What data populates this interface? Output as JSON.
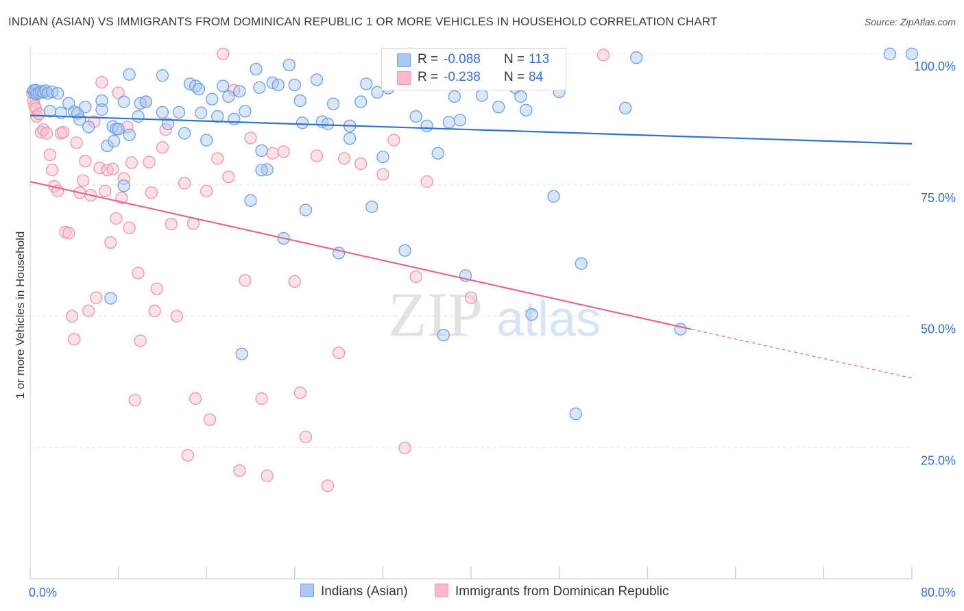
{
  "title": "INDIAN (ASIAN) VS IMMIGRANTS FROM DOMINICAN REPUBLIC 1 OR MORE VEHICLES IN HOUSEHOLD CORRELATION CHART",
  "source": "Source: ZipAtlas.com",
  "colors": {
    "blue_fill": "#aac8f0",
    "blue_stroke": "#6e9fe0",
    "blue_line": "#2f72c8",
    "pink_fill": "#f6bccd",
    "pink_stroke": "#ee93b0",
    "pink_line": "#e06894",
    "tick_label": "#3b6fc4",
    "grid": "#e4e4e4"
  },
  "legend": {
    "r_label": "R =",
    "n_label": "N =",
    "series1": {
      "r": "-0.088",
      "n": "113"
    },
    "series2": {
      "r": "-0.238",
      "n": "84"
    }
  },
  "watermark": {
    "zip": "ZIP",
    "atlas": "atlas"
  },
  "chart_data": {
    "type": "scatter",
    "xlabel": "",
    "ylabel": "1 or more Vehicles in Household",
    "xlim": [
      0,
      80
    ],
    "ylim": [
      0,
      100
    ],
    "x_tick_labels": [
      "0.0%",
      "80.0%"
    ],
    "y_ticks": [
      25,
      50,
      75,
      100
    ],
    "y_tick_labels": [
      "25.0%",
      "50.0%",
      "75.0%",
      "100.0%"
    ],
    "grid": true,
    "series": [
      {
        "name": "Indians (Asian)",
        "trend": {
          "x": [
            0,
            80
          ],
          "y": [
            88.2,
            82.8
          ]
        },
        "points": [
          [
            0.3,
            92.9
          ],
          [
            0.4,
            92.4
          ],
          [
            0.5,
            93.0
          ],
          [
            0.6,
            92.3
          ],
          [
            0.8,
            92.5
          ],
          [
            1.0,
            92.8
          ],
          [
            1.2,
            92.6
          ],
          [
            1.4,
            92.9
          ],
          [
            1.6,
            92.4
          ],
          [
            2.0,
            92.7
          ],
          [
            2.5,
            92.4
          ],
          [
            1.8,
            89.0
          ],
          [
            2.8,
            88.7
          ],
          [
            3.5,
            90.5
          ],
          [
            4.0,
            88.9
          ],
          [
            4.3,
            88.6
          ],
          [
            4.5,
            87.4
          ],
          [
            5.0,
            89.8
          ],
          [
            5.3,
            86.0
          ],
          [
            6.5,
            91.0
          ],
          [
            6.5,
            89.3
          ],
          [
            7.0,
            82.4
          ],
          [
            7.5,
            86.1
          ],
          [
            7.6,
            83.3
          ],
          [
            7.8,
            85.6
          ],
          [
            8.0,
            85.6
          ],
          [
            8.5,
            90.8
          ],
          [
            8.5,
            74.8
          ],
          [
            9.0,
            96.0
          ],
          [
            9.0,
            84.5
          ],
          [
            10.0,
            90.5
          ],
          [
            10.5,
            90.8
          ],
          [
            12.0,
            95.8
          ],
          [
            12.5,
            86.6
          ],
          [
            13.5,
            88.8
          ],
          [
            14.0,
            84.8
          ],
          [
            14.5,
            94.2
          ],
          [
            15.0,
            93.8
          ],
          [
            15.5,
            88.7
          ],
          [
            16.0,
            83.5
          ],
          [
            16.5,
            91.3
          ],
          [
            17.0,
            88.0
          ],
          [
            17.5,
            93.8
          ],
          [
            18.0,
            91.8
          ],
          [
            18.5,
            87.5
          ],
          [
            19.0,
            92.8
          ],
          [
            19.5,
            89.0
          ],
          [
            20.0,
            72.0
          ],
          [
            20.5,
            97.0
          ],
          [
            21.0,
            81.5
          ],
          [
            21.5,
            77.9
          ],
          [
            22.0,
            94.4
          ],
          [
            22.5,
            94.0
          ],
          [
            23.0,
            64.8
          ],
          [
            23.5,
            97.8
          ],
          [
            24.0,
            94.0
          ],
          [
            24.5,
            91.0
          ],
          [
            25.0,
            70.2
          ],
          [
            26.0,
            95.0
          ],
          [
            26.5,
            87.0
          ],
          [
            27.0,
            86.6
          ],
          [
            27.5,
            90.4
          ],
          [
            28.0,
            62.0
          ],
          [
            29.0,
            86.2
          ],
          [
            29.0,
            83.8
          ],
          [
            30.0,
            90.8
          ],
          [
            30.5,
            94.2
          ],
          [
            31.0,
            70.8
          ],
          [
            31.5,
            92.6
          ],
          [
            32.0,
            80.3
          ],
          [
            32.5,
            93.4
          ],
          [
            33.0,
            95.5
          ],
          [
            33.5,
            96.2
          ],
          [
            34.0,
            62.5
          ],
          [
            34.5,
            99.9
          ],
          [
            35.0,
            88.0
          ],
          [
            35.5,
            97.9
          ],
          [
            36.0,
            86.2
          ],
          [
            37.0,
            81.0
          ],
          [
            37.5,
            46.4
          ],
          [
            38.0,
            86.9
          ],
          [
            38.5,
            91.8
          ],
          [
            39.0,
            87.3
          ],
          [
            39.5,
            57.7
          ],
          [
            40.0,
            97.3
          ],
          [
            40.5,
            95.0
          ],
          [
            41.0,
            92.0
          ],
          [
            41.5,
            96.5
          ],
          [
            42.0,
            99.5
          ],
          [
            42.5,
            89.8
          ],
          [
            43.5,
            99.5
          ],
          [
            44.0,
            93.5
          ],
          [
            44.5,
            91.8
          ],
          [
            45.0,
            89.2
          ],
          [
            45.5,
            50.3
          ],
          [
            47.0,
            99.8
          ],
          [
            47.5,
            72.8
          ],
          [
            48.0,
            92.7
          ],
          [
            49.5,
            31.4
          ],
          [
            50.0,
            60.0
          ],
          [
            54.0,
            89.6
          ],
          [
            55.0,
            99.2
          ],
          [
            59.0,
            47.5
          ],
          [
            78.0,
            99.9
          ],
          [
            80.0,
            99.9
          ],
          [
            12.0,
            88.8
          ],
          [
            19.2,
            42.8
          ],
          [
            21.0,
            77.8
          ],
          [
            20.8,
            93.5
          ],
          [
            7.3,
            53.4
          ],
          [
            9.8,
            88.0
          ],
          [
            24.7,
            86.8
          ],
          [
            15.3,
            93.2
          ]
        ]
      },
      {
        "name": "Immigrants from Dominican Republic",
        "trend": {
          "x": [
            0,
            60
          ],
          "y": [
            75.6,
            47.5
          ]
        },
        "trend_ext": {
          "x": [
            60,
            80
          ],
          "y": [
            47.5,
            38.2
          ]
        },
        "points": [
          [
            0.2,
            92.5
          ],
          [
            0.3,
            91.0
          ],
          [
            0.4,
            90.0
          ],
          [
            0.5,
            89.5
          ],
          [
            0.6,
            88.0
          ],
          [
            0.8,
            88.5
          ],
          [
            1.0,
            85.0
          ],
          [
            1.2,
            85.5
          ],
          [
            1.5,
            84.8
          ],
          [
            1.8,
            80.7
          ],
          [
            2.0,
            77.8
          ],
          [
            2.2,
            74.7
          ],
          [
            2.5,
            73.8
          ],
          [
            2.8,
            84.8
          ],
          [
            3.0,
            85.0
          ],
          [
            3.2,
            66.0
          ],
          [
            3.5,
            65.8
          ],
          [
            3.8,
            50.0
          ],
          [
            4.0,
            45.6
          ],
          [
            4.2,
            83.0
          ],
          [
            4.5,
            73.5
          ],
          [
            4.8,
            75.8
          ],
          [
            5.0,
            79.5
          ],
          [
            5.3,
            51.0
          ],
          [
            5.5,
            73.0
          ],
          [
            5.8,
            87.0
          ],
          [
            6.0,
            53.5
          ],
          [
            6.3,
            78.2
          ],
          [
            6.5,
            94.5
          ],
          [
            6.8,
            73.8
          ],
          [
            7.0,
            77.8
          ],
          [
            7.3,
            64.0
          ],
          [
            7.5,
            78.0
          ],
          [
            7.8,
            68.6
          ],
          [
            8.0,
            92.5
          ],
          [
            8.3,
            72.5
          ],
          [
            8.5,
            76.2
          ],
          [
            8.8,
            86.0
          ],
          [
            9.0,
            66.8
          ],
          [
            9.2,
            79.2
          ],
          [
            9.5,
            34.0
          ],
          [
            9.8,
            58.2
          ],
          [
            10.0,
            45.3
          ],
          [
            10.5,
            90.8
          ],
          [
            10.8,
            79.3
          ],
          [
            11.0,
            73.5
          ],
          [
            11.3,
            51.0
          ],
          [
            11.5,
            55.2
          ],
          [
            12.0,
            82.1
          ],
          [
            12.3,
            85.5
          ],
          [
            12.8,
            67.5
          ],
          [
            13.3,
            50.0
          ],
          [
            14.0,
            75.3
          ],
          [
            14.3,
            23.5
          ],
          [
            14.8,
            67.6
          ],
          [
            15.0,
            34.3
          ],
          [
            16.0,
            73.8
          ],
          [
            16.3,
            30.3
          ],
          [
            17.0,
            80.0
          ],
          [
            17.5,
            99.9
          ],
          [
            18.0,
            76.5
          ],
          [
            18.5,
            93.0
          ],
          [
            19.0,
            20.6
          ],
          [
            19.5,
            56.8
          ],
          [
            20.0,
            83.9
          ],
          [
            21.0,
            34.3
          ],
          [
            21.5,
            19.6
          ],
          [
            22.0,
            81.0
          ],
          [
            23.0,
            81.3
          ],
          [
            24.0,
            56.6
          ],
          [
            24.5,
            35.4
          ],
          [
            25.0,
            27.0
          ],
          [
            26.0,
            80.5
          ],
          [
            27.0,
            17.7
          ],
          [
            28.0,
            43.0
          ],
          [
            28.5,
            80.0
          ],
          [
            30.0,
            79.0
          ],
          [
            32.0,
            77.0
          ],
          [
            33.0,
            83.5
          ],
          [
            34.0,
            24.9
          ],
          [
            35.0,
            57.5
          ],
          [
            36.0,
            75.6
          ],
          [
            40.0,
            53.5
          ],
          [
            52.0,
            99.7
          ]
        ]
      }
    ]
  }
}
